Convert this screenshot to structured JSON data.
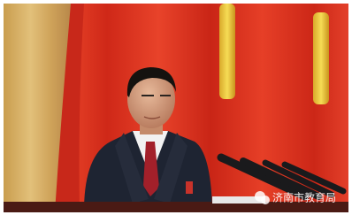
{
  "watermark": {
    "text": "济南市教育局"
  }
}
